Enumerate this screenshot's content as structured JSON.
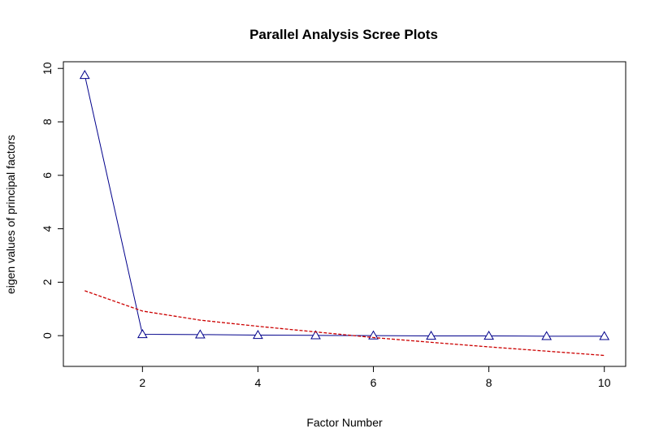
{
  "chart_data": {
    "type": "line",
    "title": "Parallel Analysis Scree Plots",
    "xlabel": "Factor Number",
    "ylabel": "eigen values of principal factors",
    "xlim": [
      0.63,
      10.37
    ],
    "ylim": [
      -1.15,
      10.25
    ],
    "x_ticks": [
      2,
      4,
      6,
      8,
      10
    ],
    "y_ticks": [
      0,
      2,
      4,
      6,
      8,
      10
    ],
    "grid": false,
    "legend": "none",
    "x": [
      1,
      2,
      3,
      4,
      5,
      6,
      7,
      8,
      9,
      10
    ],
    "series": [
      {
        "values": [
          9.75,
          0.05,
          0.04,
          0.02,
          0.01,
          0.0,
          -0.01,
          -0.01,
          -0.02,
          -0.02
        ],
        "color": "#00008b",
        "style": "solid",
        "marker": "triangle-open"
      },
      {
        "values": [
          1.68,
          0.92,
          0.58,
          0.35,
          0.14,
          -0.07,
          -0.25,
          -0.42,
          -0.58,
          -0.74
        ],
        "color": "#cc0000",
        "style": "dashed",
        "marker": "none"
      }
    ]
  }
}
